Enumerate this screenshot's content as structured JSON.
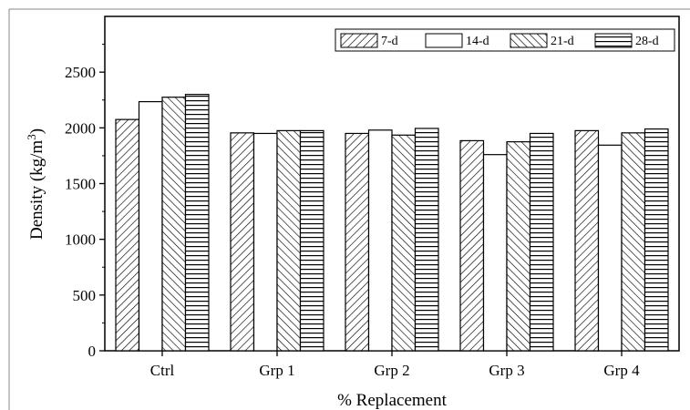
{
  "chart_data": {
    "type": "bar",
    "title": "",
    "xlabel": "% Replacement",
    "ylabel_main": "Density (kg/m",
    "ylabel_sup": "3",
    "ylabel_close": ")",
    "categories": [
      "Ctrl",
      "Grp 1",
      "Grp 2",
      "Grp 3",
      "Grp 4"
    ],
    "ylim": [
      0,
      3000
    ],
    "yticks": [
      0,
      500,
      1000,
      1500,
      2000,
      2500
    ],
    "grid": false,
    "legend_position": "top-right",
    "series": [
      {
        "name": "7-d",
        "pattern": "forward-diagonal-hatch",
        "values": [
          2075,
          1955,
          1950,
          1885,
          1975
        ]
      },
      {
        "name": "14-d",
        "pattern": "solid-white",
        "values": [
          2235,
          1950,
          1980,
          1760,
          1845
        ]
      },
      {
        "name": "21-d",
        "pattern": "backward-diagonal-hatch",
        "values": [
          2275,
          1975,
          1935,
          1875,
          1955
        ]
      },
      {
        "name": "28-d",
        "pattern": "horizontal-lines",
        "values": [
          2300,
          1975,
          1995,
          1950,
          1990
        ]
      }
    ]
  }
}
